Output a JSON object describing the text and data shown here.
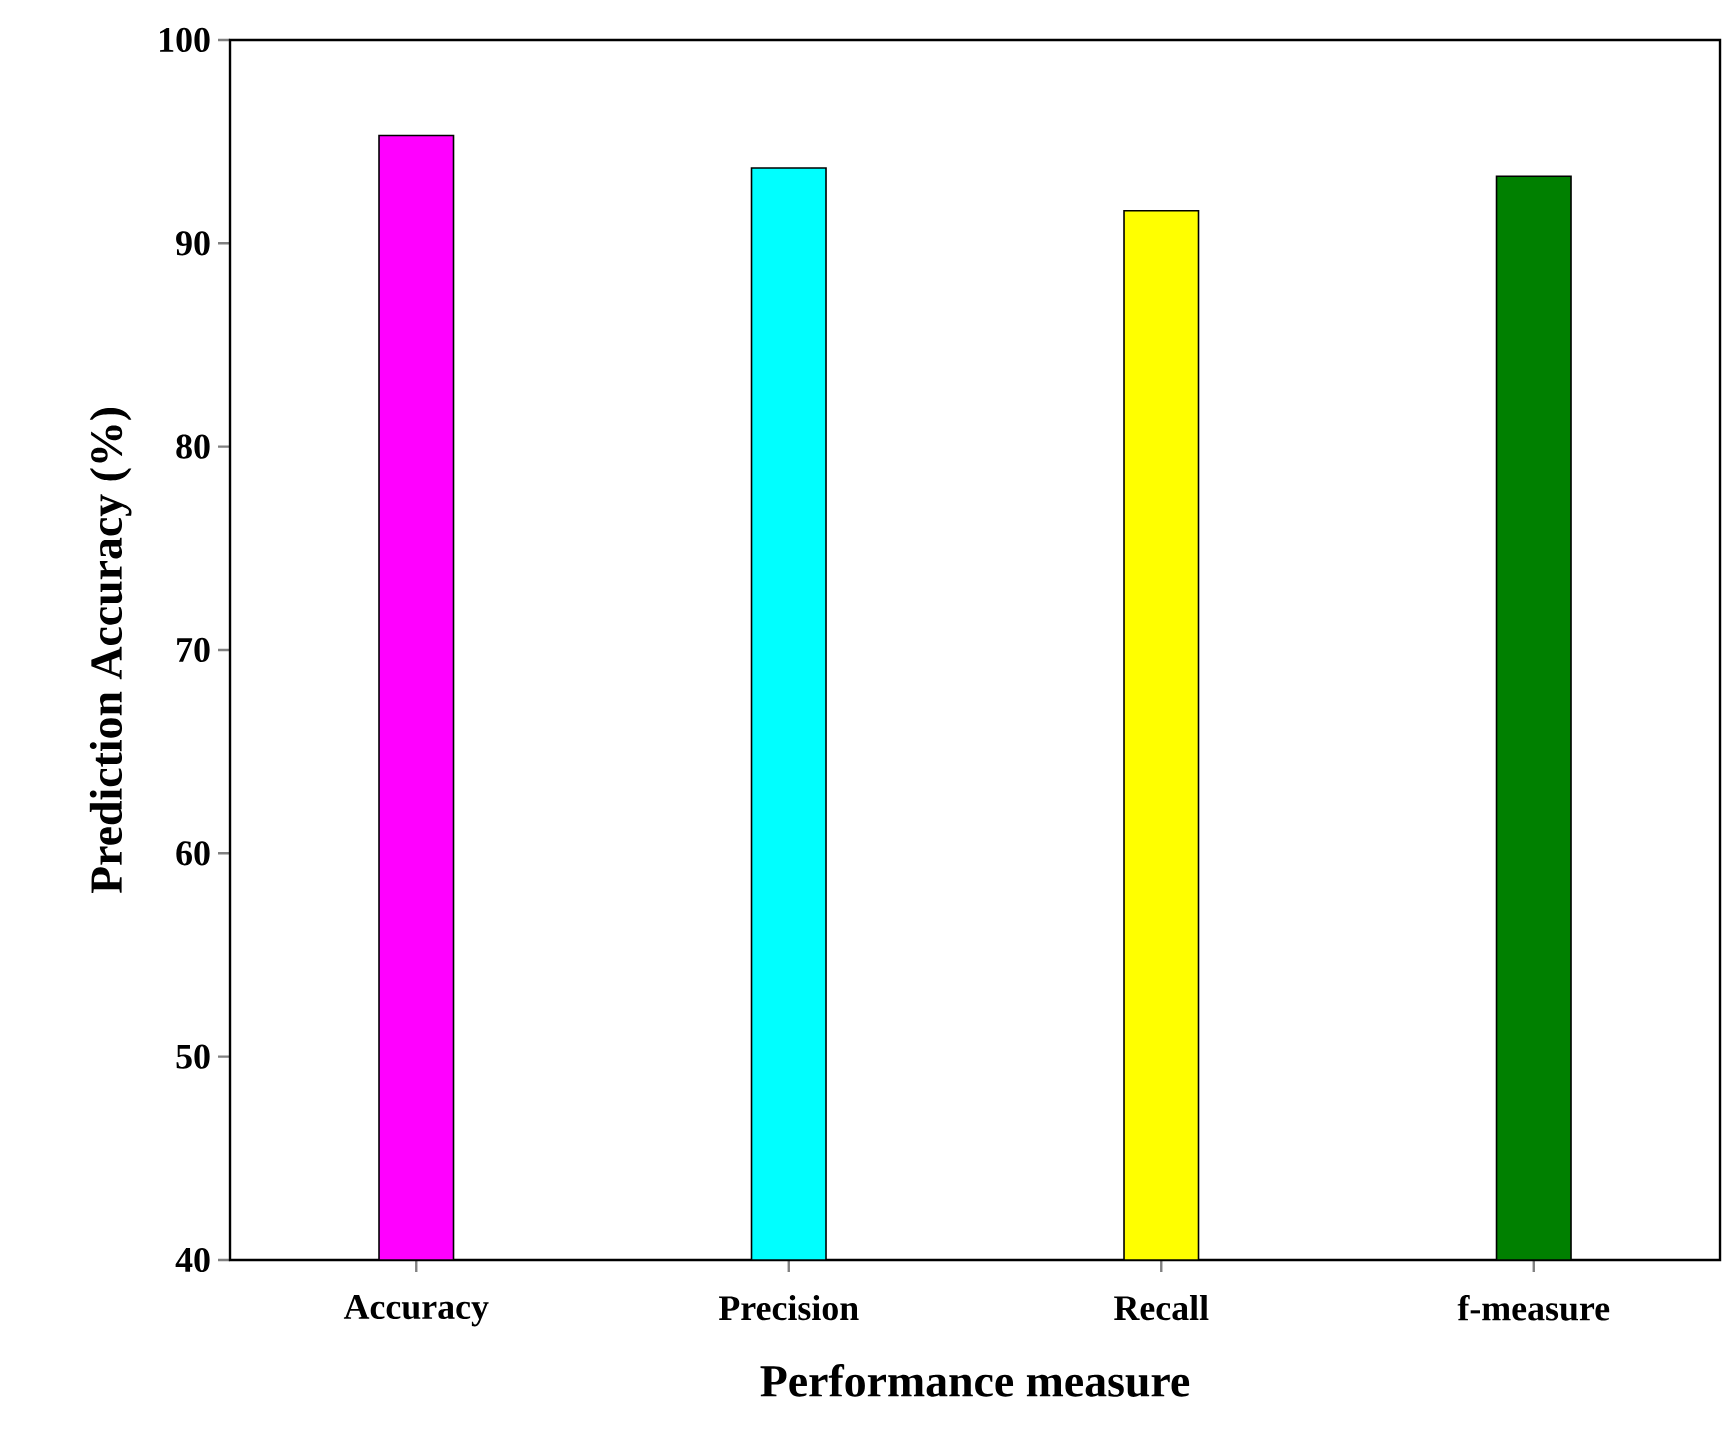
{
  "chart_data": {
    "type": "bar",
    "xlabel": "Performance measure",
    "ylabel": "Prediction Accuracy (%)",
    "categories": [
      "Accuracy",
      "Precision",
      "Recall",
      "f-measure"
    ],
    "values": [
      95.3,
      93.7,
      91.6,
      93.3
    ],
    "colors": [
      "#ff00ff",
      "#00ffff",
      "#ffff00",
      "#008000"
    ],
    "ylim": [
      40,
      100
    ],
    "yticks": [
      40,
      50,
      60,
      70,
      80,
      90,
      100
    ],
    "grid": false
  }
}
